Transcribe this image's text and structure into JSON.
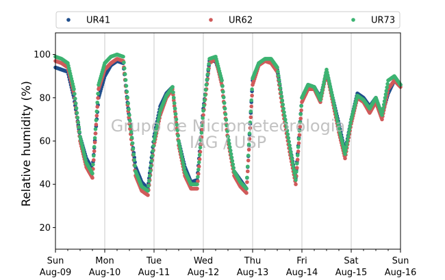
{
  "chart_data": {
    "type": "scatter",
    "title": "",
    "xlabel": "",
    "ylabel": "Relative humidity (%)",
    "ylim": [
      10,
      110
    ],
    "yticks": [
      20,
      40,
      60,
      80,
      100
    ],
    "xlim": [
      "2015-08-09",
      "2015-08-16"
    ],
    "grid": "vertical at day boundaries",
    "legend_position": "top, above plot, 3 columns",
    "x_tick_labels": [
      {
        "day": "Sun",
        "date": "Aug-09"
      },
      {
        "day": "Mon",
        "date": "Aug-10"
      },
      {
        "day": "Tue",
        "date": "Aug-11"
      },
      {
        "day": "Wed",
        "date": "Aug-12"
      },
      {
        "day": "Thu",
        "date": "Aug-13"
      },
      {
        "day": "Fri",
        "date": "Aug-14"
      },
      {
        "day": "Sat",
        "date": "Aug-15"
      },
      {
        "day": "Sun",
        "date": "Aug-16"
      }
    ],
    "watermark": [
      "Grupo de Micrometeorologia",
      "IAG / USP"
    ],
    "x": [
      "08-09 00:00",
      "08-09 03:00",
      "08-09 06:00",
      "08-09 09:00",
      "08-09 12:00",
      "08-09 15:00",
      "08-09 18:00",
      "08-09 21:00",
      "08-10 00:00",
      "08-10 03:00",
      "08-10 06:00",
      "08-10 09:00",
      "08-10 12:00",
      "08-10 15:00",
      "08-10 18:00",
      "08-10 21:00",
      "08-11 00:00",
      "08-11 03:00",
      "08-11 06:00",
      "08-11 09:00",
      "08-11 12:00",
      "08-11 15:00",
      "08-11 18:00",
      "08-11 21:00",
      "08-12 00:00",
      "08-12 03:00",
      "08-12 06:00",
      "08-12 09:00",
      "08-12 12:00",
      "08-12 15:00",
      "08-12 18:00",
      "08-12 21:00",
      "08-13 00:00",
      "08-13 03:00",
      "08-13 06:00",
      "08-13 09:00",
      "08-13 12:00",
      "08-13 15:00",
      "08-13 18:00",
      "08-13 21:00",
      "08-14 00:00",
      "08-14 03:00",
      "08-14 06:00",
      "08-14 09:00",
      "08-14 12:00",
      "08-14 15:00",
      "08-14 18:00",
      "08-14 21:00",
      "08-15 00:00",
      "08-15 03:00",
      "08-15 06:00",
      "08-15 09:00",
      "08-15 12:00",
      "08-15 15:00",
      "08-15 18:00",
      "08-15 21:00",
      "08-16 00:00"
    ],
    "series": [
      {
        "name": "UR41",
        "color": "#1f4e8c",
        "values": [
          94,
          93,
          92,
          80,
          62,
          52,
          47,
          80,
          90,
          95,
          97,
          96,
          70,
          48,
          41,
          38,
          62,
          76,
          82,
          85,
          60,
          48,
          41,
          42,
          75,
          97,
          97,
          88,
          62,
          46,
          42,
          38,
          88,
          96,
          97,
          97,
          93,
          75,
          58,
          43,
          80,
          86,
          85,
          80,
          92,
          80,
          68,
          55,
          70,
          82,
          80,
          76,
          80,
          72,
          82,
          88,
          86
        ]
      },
      {
        "name": "UR62",
        "color": "#d05a5a",
        "values": [
          97,
          96,
          94,
          82,
          60,
          48,
          43,
          84,
          93,
          96,
          98,
          97,
          68,
          44,
          37,
          35,
          58,
          72,
          80,
          84,
          58,
          44,
          38,
          38,
          72,
          96,
          98,
          86,
          60,
          44,
          39,
          36,
          86,
          95,
          97,
          96,
          92,
          72,
          55,
          40,
          78,
          84,
          84,
          78,
          92,
          78,
          64,
          52,
          68,
          80,
          78,
          73,
          78,
          70,
          84,
          88,
          85
        ]
      },
      {
        "name": "UR73",
        "color": "#3cb371",
        "values": [
          99,
          98,
          96,
          84,
          62,
          50,
          45,
          86,
          96,
          99,
          100,
          99,
          72,
          46,
          39,
          37,
          60,
          74,
          81,
          85,
          60,
          46,
          40,
          40,
          74,
          98,
          99,
          88,
          62,
          46,
          41,
          38,
          89,
          96,
          98,
          98,
          94,
          75,
          58,
          42,
          80,
          86,
          85,
          79,
          93,
          80,
          66,
          54,
          70,
          81,
          79,
          75,
          80,
          72,
          88,
          90,
          86
        ]
      }
    ]
  }
}
